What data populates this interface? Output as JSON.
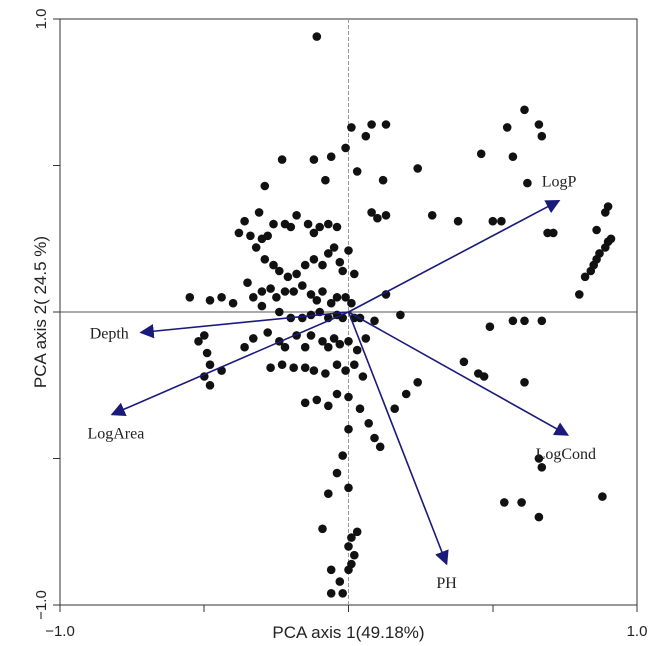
{
  "chart_data": {
    "type": "scatter",
    "title": "",
    "xlabel": "PCA axis 1(49.18%)",
    "ylabel": "PCA axis 2( 24.5 %)",
    "xlim": [
      -1.0,
      1.0
    ],
    "ylim": [
      -1.0,
      1.0
    ],
    "x_tick_labels": [
      "−1.0",
      "1.0"
    ],
    "y_tick_labels": [
      "−1.0",
      "1.0"
    ],
    "grid": false,
    "zero_lines": true,
    "point_color": "#111111",
    "vector_color": "#1a1a7a",
    "points": [
      [
        -0.11,
        0.94
      ],
      [
        0.01,
        0.63
      ],
      [
        0.08,
        0.64
      ],
      [
        0.13,
        0.64
      ],
      [
        0.06,
        0.6
      ],
      [
        -0.01,
        0.56
      ],
      [
        -0.06,
        0.53
      ],
      [
        -0.12,
        0.52
      ],
      [
        -0.23,
        0.52
      ],
      [
        -0.29,
        0.43
      ],
      [
        -0.08,
        0.45
      ],
      [
        0.03,
        0.48
      ],
      [
        0.12,
        0.45
      ],
      [
        0.13,
        0.33
      ],
      [
        0.1,
        0.32
      ],
      [
        0.08,
        0.34
      ],
      [
        0.24,
        0.49
      ],
      [
        0.29,
        0.33
      ],
      [
        0.38,
        0.31
      ],
      [
        0.5,
        0.31
      ],
      [
        0.53,
        0.31
      ],
      [
        0.46,
        0.54
      ],
      [
        0.57,
        0.53
      ],
      [
        0.61,
        0.69
      ],
      [
        0.55,
        0.63
      ],
      [
        0.66,
        0.64
      ],
      [
        0.67,
        0.6
      ],
      [
        0.62,
        0.44
      ],
      [
        0.69,
        0.27
      ],
      [
        0.71,
        0.27
      ],
      [
        -0.31,
        0.34
      ],
      [
        -0.36,
        0.31
      ],
      [
        -0.38,
        0.27
      ],
      [
        -0.34,
        0.26
      ],
      [
        -0.3,
        0.25
      ],
      [
        -0.28,
        0.26
      ],
      [
        -0.26,
        0.3
      ],
      [
        -0.22,
        0.3
      ],
      [
        -0.2,
        0.29
      ],
      [
        -0.18,
        0.33
      ],
      [
        -0.14,
        0.3
      ],
      [
        -0.12,
        0.27
      ],
      [
        -0.1,
        0.29
      ],
      [
        -0.07,
        0.3
      ],
      [
        -0.04,
        0.29
      ],
      [
        -0.32,
        0.22
      ],
      [
        -0.29,
        0.18
      ],
      [
        -0.26,
        0.16
      ],
      [
        -0.24,
        0.14
      ],
      [
        -0.21,
        0.12
      ],
      [
        -0.18,
        0.13
      ],
      [
        -0.15,
        0.16
      ],
      [
        -0.12,
        0.18
      ],
      [
        -0.09,
        0.16
      ],
      [
        -0.07,
        0.2
      ],
      [
        -0.05,
        0.22
      ],
      [
        -0.03,
        0.17
      ],
      [
        0.0,
        0.21
      ],
      [
        -0.02,
        0.14
      ],
      [
        0.02,
        0.13
      ],
      [
        -0.35,
        0.1
      ],
      [
        -0.33,
        0.05
      ],
      [
        -0.3,
        0.07
      ],
      [
        -0.27,
        0.08
      ],
      [
        -0.25,
        0.05
      ],
      [
        -0.22,
        0.07
      ],
      [
        -0.19,
        0.07
      ],
      [
        -0.16,
        0.09
      ],
      [
        -0.13,
        0.06
      ],
      [
        -0.11,
        0.04
      ],
      [
        -0.09,
        0.07
      ],
      [
        -0.06,
        0.03
      ],
      [
        -0.04,
        0.05
      ],
      [
        -0.01,
        0.05
      ],
      [
        0.01,
        0.03
      ],
      [
        -0.55,
        0.05
      ],
      [
        -0.48,
        0.04
      ],
      [
        -0.44,
        0.05
      ],
      [
        -0.4,
        0.03
      ],
      [
        -0.3,
        0.02
      ],
      [
        -0.24,
        0.0
      ],
      [
        -0.2,
        -0.02
      ],
      [
        -0.16,
        -0.02
      ],
      [
        -0.13,
        -0.01
      ],
      [
        -0.1,
        0.0
      ],
      [
        -0.07,
        -0.02
      ],
      [
        -0.04,
        -0.01
      ],
      [
        -0.02,
        -0.02
      ],
      [
        0.02,
        -0.02
      ],
      [
        0.04,
        -0.02
      ],
      [
        0.09,
        -0.03
      ],
      [
        0.13,
        0.06
      ],
      [
        0.18,
        -0.01
      ],
      [
        -0.5,
        -0.08
      ],
      [
        -0.52,
        -0.1
      ],
      [
        -0.49,
        -0.14
      ],
      [
        -0.48,
        -0.18
      ],
      [
        -0.5,
        -0.22
      ],
      [
        -0.48,
        -0.25
      ],
      [
        -0.44,
        -0.2
      ],
      [
        -0.36,
        -0.12
      ],
      [
        -0.33,
        -0.09
      ],
      [
        -0.28,
        -0.07
      ],
      [
        -0.24,
        -0.1
      ],
      [
        -0.22,
        -0.12
      ],
      [
        -0.18,
        -0.08
      ],
      [
        -0.15,
        -0.12
      ],
      [
        -0.13,
        -0.08
      ],
      [
        -0.09,
        -0.1
      ],
      [
        -0.07,
        -0.12
      ],
      [
        -0.05,
        -0.09
      ],
      [
        -0.03,
        -0.11
      ],
      [
        0.0,
        -0.1
      ],
      [
        0.03,
        -0.13
      ],
      [
        0.06,
        -0.09
      ],
      [
        -0.27,
        -0.19
      ],
      [
        -0.23,
        -0.18
      ],
      [
        -0.19,
        -0.19
      ],
      [
        -0.15,
        -0.19
      ],
      [
        -0.12,
        -0.2
      ],
      [
        -0.08,
        -0.21
      ],
      [
        -0.04,
        -0.18
      ],
      [
        -0.01,
        -0.2
      ],
      [
        0.02,
        -0.18
      ],
      [
        0.05,
        -0.22
      ],
      [
        -0.15,
        -0.31
      ],
      [
        -0.11,
        -0.3
      ],
      [
        -0.07,
        -0.32
      ],
      [
        -0.04,
        -0.28
      ],
      [
        0.0,
        -0.29
      ],
      [
        0.04,
        -0.33
      ],
      [
        0.07,
        -0.38
      ],
      [
        0.09,
        -0.43
      ],
      [
        0.11,
        -0.46
      ],
      [
        0.16,
        -0.33
      ],
      [
        0.2,
        -0.28
      ],
      [
        0.24,
        -0.24
      ],
      [
        0.0,
        -0.4
      ],
      [
        -0.02,
        -0.49
      ],
      [
        -0.04,
        -0.55
      ],
      [
        0.0,
        -0.6
      ],
      [
        -0.07,
        -0.62
      ],
      [
        -0.09,
        -0.74
      ],
      [
        0.03,
        -0.75
      ],
      [
        0.01,
        -0.77
      ],
      [
        0.0,
        -0.8
      ],
      [
        0.02,
        -0.83
      ],
      [
        0.01,
        -0.86
      ],
      [
        0.0,
        -0.88
      ],
      [
        -0.03,
        -0.92
      ],
      [
        -0.06,
        -0.88
      ],
      [
        -0.02,
        -0.96
      ],
      [
        -0.06,
        -0.96
      ],
      [
        0.4,
        -0.17
      ],
      [
        0.45,
        -0.21
      ],
      [
        0.47,
        -0.22
      ],
      [
        0.49,
        -0.05
      ],
      [
        0.57,
        -0.03
      ],
      [
        0.61,
        -0.03
      ],
      [
        0.67,
        -0.03
      ],
      [
        0.61,
        -0.24
      ],
      [
        0.66,
        -0.5
      ],
      [
        0.67,
        -0.53
      ],
      [
        0.54,
        -0.65
      ],
      [
        0.6,
        -0.65
      ],
      [
        0.66,
        -0.7
      ],
      [
        0.88,
        -0.63
      ],
      [
        0.86,
        0.28
      ],
      [
        0.89,
        0.34
      ],
      [
        0.9,
        0.36
      ],
      [
        0.82,
        0.12
      ],
      [
        0.84,
        0.14
      ],
      [
        0.85,
        0.16
      ],
      [
        0.86,
        0.18
      ],
      [
        0.87,
        0.2
      ],
      [
        0.89,
        0.22
      ],
      [
        0.9,
        0.24
      ],
      [
        0.91,
        0.25
      ],
      [
        0.8,
        0.06
      ]
    ],
    "vectors": [
      {
        "label": "LogP",
        "x": 0.73,
        "y": 0.38
      },
      {
        "label": "Depth",
        "x": -0.72,
        "y": -0.07
      },
      {
        "label": "LogArea",
        "x": -0.82,
        "y": -0.35
      },
      {
        "label": "LogCond",
        "x": 0.76,
        "y": -0.42
      },
      {
        "label": "PH",
        "x": 0.34,
        "y": -0.86
      }
    ]
  }
}
